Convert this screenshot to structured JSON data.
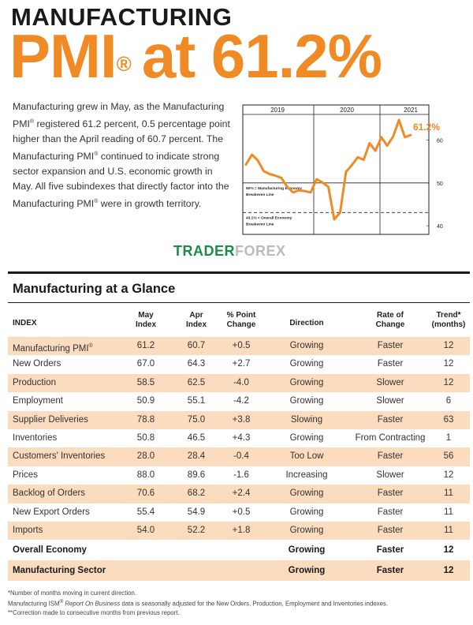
{
  "header": {
    "top_line": "MANUFACTURING",
    "big_left": "PMI",
    "reg": "®",
    "big_right": "at 61.2%"
  },
  "intro": {
    "part1": "Manufacturing grew in May, as the Manufacturing PMI",
    "part2": " registered 61.2 percent, 0.5 percentage point higher than the April reading of 60.7 percent. The Manufacturing PMI",
    "part3": " continued to indicate strong sector expansion and U.S. economic growth in May. All five subindexes that directly factor into the Manufacturing PMI",
    "part4": " were in growth territory.",
    "reg": "®"
  },
  "chart_data": {
    "type": "line",
    "year_labels": [
      "2019",
      "2020",
      "2021"
    ],
    "y_ticks": [
      60,
      50,
      40
    ],
    "ylim": [
      38,
      66
    ],
    "callout": "61.2%",
    "reference_lines": [
      {
        "value": 50,
        "label_lines": [
          "50% = Manufacturing Economy",
          "Breakeven Line"
        ]
      },
      {
        "value": 43.1,
        "label_lines": [
          "43.1% = Overall Economy",
          "Breakeven Line"
        ]
      }
    ],
    "color": "#f08a24",
    "series": [
      {
        "values": [
          54.3,
          56.6,
          55.3,
          52.8,
          52.1,
          51.7,
          51.2,
          49.1,
          47.8,
          48.3,
          48.1,
          47.8,
          50.9,
          50.1,
          49.1,
          41.5,
          43.1,
          52.6,
          54.2,
          56.0,
          55.4,
          59.3,
          57.5,
          60.7,
          58.7,
          60.8,
          64.7,
          60.7,
          61.2
        ]
      }
    ]
  },
  "watermark": {
    "part1": "TRADER",
    "part2": "FOREX"
  },
  "glance": {
    "title": "Manufacturing at a Glance",
    "headers": {
      "index": "INDEX",
      "may": [
        "May",
        "Index"
      ],
      "apr": [
        "Apr",
        "Index"
      ],
      "change": [
        "% Point",
        "Change"
      ],
      "direction": "Direction",
      "rate": [
        "Rate of",
        "Change"
      ],
      "trend": [
        "Trend*",
        "(months)"
      ]
    },
    "rows": [
      {
        "name": "Manufacturing PMI",
        "reg": "®",
        "may": "61.2",
        "apr": "60.7",
        "change": "+0.5",
        "direction": "Growing",
        "rate": "Faster",
        "trend": "12"
      },
      {
        "name": "New Orders",
        "may": "67.0",
        "apr": "64.3",
        "change": "+2.7",
        "direction": "Growing",
        "rate": "Faster",
        "trend": "12"
      },
      {
        "name": "Production",
        "may": "58.5",
        "apr": "62.5",
        "change": "-4.0",
        "direction": "Growing",
        "rate": "Slower",
        "trend": "12"
      },
      {
        "name": "Employment",
        "may": "50.9",
        "apr": "55.1",
        "change": "-4.2",
        "direction": "Growing",
        "rate": "Slower",
        "trend": "6"
      },
      {
        "name": "Supplier Deliveries",
        "may": "78.8",
        "apr": "75.0",
        "change": "+3.8",
        "direction": "Slowing",
        "rate": "Faster",
        "trend": "63"
      },
      {
        "name": "Inventories",
        "may": "50.8",
        "apr": "46.5",
        "change": "+4.3",
        "direction": "Growing",
        "rate": "From Contracting",
        "trend": "1"
      },
      {
        "name": "Customers' Inventories",
        "may": "28.0",
        "apr": "28.4",
        "change": "-0.4",
        "direction": "Too Low",
        "rate": "Faster",
        "trend": "56"
      },
      {
        "name": "Prices",
        "may": "88.0",
        "apr": "89.6",
        "change": "-1.6",
        "direction": "Increasing",
        "rate": "Slower",
        "trend": "12"
      },
      {
        "name": "Backlog of Orders",
        "may": "70.6",
        "apr": "68.2",
        "change": "+2.4",
        "direction": "Growing",
        "rate": "Faster",
        "trend": "11"
      },
      {
        "name": "New Export Orders",
        "may": "55.4",
        "apr": "54.9",
        "change": "+0.5",
        "direction": "Growing",
        "rate": "Faster",
        "trend": "11"
      },
      {
        "name": "Imports",
        "may": "54.0",
        "apr": "52.2",
        "change": "+1.8",
        "direction": "Growing",
        "rate": "Faster",
        "trend": "11"
      },
      {
        "name": "Overall Economy",
        "may": "",
        "apr": "",
        "change": "",
        "direction": "Growing",
        "rate": "Faster",
        "trend": "12"
      },
      {
        "name": "Manufacturing Sector",
        "may": "",
        "apr": "",
        "change": "",
        "direction": "Growing",
        "rate": "Faster",
        "trend": "12"
      }
    ]
  },
  "notes": {
    "line1": "*Number of months moving in current direction.",
    "line2_a": "Manufacturing ISM",
    "line2_reg": "®",
    "line2_italic": " Report On Business",
    "line2_b": " data is seasonally adjusted for the New Orders, Production, Employment and Inventories indexes.",
    "line3": "**Correction made to consecutive months from previous report."
  }
}
